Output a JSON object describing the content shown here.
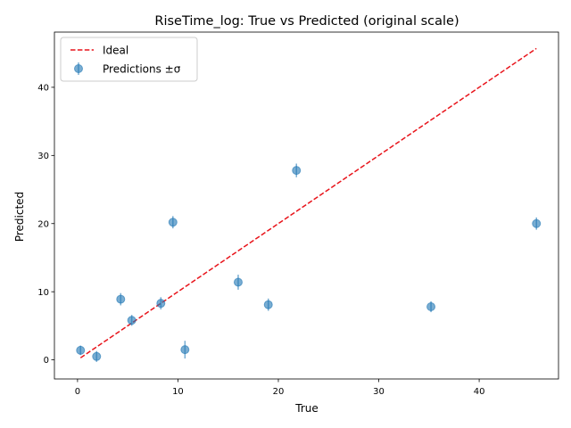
{
  "chart_data": {
    "type": "scatter",
    "title": "RiseTime_log: True vs Predicted (original scale)",
    "xlabel": "True",
    "ylabel": "Predicted",
    "xlim": [
      -2.3,
      47.9
    ],
    "ylim": [
      -2.8,
      48.1
    ],
    "x_ticks": [
      0,
      10,
      20,
      30,
      40
    ],
    "y_ticks": [
      0,
      10,
      20,
      30,
      40
    ],
    "grid": false,
    "legend_position": "top-left",
    "legend": [
      {
        "label": "Ideal",
        "kind": "line"
      },
      {
        "label": "Predictions ±σ",
        "kind": "marker"
      }
    ],
    "ideal_line": {
      "from": 0.3,
      "to": 45.7,
      "color": "#e8141b"
    },
    "points_color": "#1f77b4",
    "points": [
      {
        "x": 0.3,
        "y": 1.4,
        "err": 0.7
      },
      {
        "x": 1.9,
        "y": 0.5,
        "err": 0.8
      },
      {
        "x": 4.3,
        "y": 8.9,
        "err": 0.9
      },
      {
        "x": 5.4,
        "y": 5.8,
        "err": 0.8
      },
      {
        "x": 8.3,
        "y": 8.3,
        "err": 0.9
      },
      {
        "x": 9.5,
        "y": 20.2,
        "err": 0.9
      },
      {
        "x": 10.7,
        "y": 1.5,
        "err": 1.3
      },
      {
        "x": 16.0,
        "y": 11.4,
        "err": 1.1
      },
      {
        "x": 19.0,
        "y": 8.1,
        "err": 0.9
      },
      {
        "x": 21.8,
        "y": 27.8,
        "err": 1.0
      },
      {
        "x": 35.2,
        "y": 7.8,
        "err": 0.8
      },
      {
        "x": 45.7,
        "y": 20.0,
        "err": 0.9
      }
    ]
  }
}
